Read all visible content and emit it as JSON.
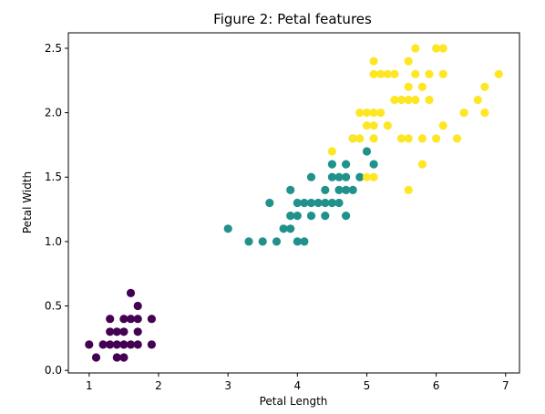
{
  "chart_data": {
    "type": "scatter",
    "title": "Figure 2: Petal features",
    "xlabel": "Petal Length",
    "ylabel": "Petal Width",
    "xlim": [
      0.7,
      7.2
    ],
    "ylim": [
      -0.02,
      2.62
    ],
    "xticks": [
      1,
      2,
      3,
      4,
      5,
      6,
      7
    ],
    "yticks": [
      0.0,
      0.5,
      1.0,
      1.5,
      2.0,
      2.5
    ],
    "xtick_labels": [
      "1",
      "2",
      "3",
      "4",
      "5",
      "6",
      "7"
    ],
    "ytick_labels": [
      "0.0",
      "0.5",
      "1.0",
      "1.5",
      "2.0",
      "2.5"
    ],
    "grid": false,
    "legend": "none",
    "series": [
      {
        "color": "#440154",
        "points": [
          [
            1.0,
            0.2
          ],
          [
            1.1,
            0.1
          ],
          [
            1.2,
            0.2
          ],
          [
            1.3,
            0.2
          ],
          [
            1.3,
            0.3
          ],
          [
            1.3,
            0.4
          ],
          [
            1.4,
            0.1
          ],
          [
            1.4,
            0.2
          ],
          [
            1.4,
            0.3
          ],
          [
            1.5,
            0.1
          ],
          [
            1.5,
            0.2
          ],
          [
            1.5,
            0.3
          ],
          [
            1.5,
            0.4
          ],
          [
            1.6,
            0.2
          ],
          [
            1.6,
            0.4
          ],
          [
            1.6,
            0.6
          ],
          [
            1.7,
            0.2
          ],
          [
            1.7,
            0.3
          ],
          [
            1.7,
            0.4
          ],
          [
            1.7,
            0.5
          ],
          [
            1.9,
            0.2
          ],
          [
            1.9,
            0.4
          ]
        ]
      },
      {
        "color": "#21918c",
        "points": [
          [
            3.0,
            1.1
          ],
          [
            3.3,
            1.0
          ],
          [
            3.5,
            1.0
          ],
          [
            3.6,
            1.3
          ],
          [
            3.7,
            1.0
          ],
          [
            3.8,
            1.1
          ],
          [
            3.9,
            1.1
          ],
          [
            3.9,
            1.2
          ],
          [
            3.9,
            1.4
          ],
          [
            4.0,
            1.0
          ],
          [
            4.0,
            1.2
          ],
          [
            4.0,
            1.3
          ],
          [
            4.1,
            1.0
          ],
          [
            4.1,
            1.3
          ],
          [
            4.2,
            1.2
          ],
          [
            4.2,
            1.3
          ],
          [
            4.2,
            1.5
          ],
          [
            4.3,
            1.3
          ],
          [
            4.4,
            1.2
          ],
          [
            4.4,
            1.3
          ],
          [
            4.4,
            1.4
          ],
          [
            4.5,
            1.3
          ],
          [
            4.5,
            1.5
          ],
          [
            4.5,
            1.6
          ],
          [
            4.6,
            1.3
          ],
          [
            4.6,
            1.4
          ],
          [
            4.6,
            1.5
          ],
          [
            4.7,
            1.2
          ],
          [
            4.7,
            1.4
          ],
          [
            4.7,
            1.5
          ],
          [
            4.7,
            1.6
          ],
          [
            4.8,
            1.4
          ],
          [
            4.8,
            1.8
          ],
          [
            4.9,
            1.5
          ],
          [
            5.0,
            1.7
          ],
          [
            5.1,
            1.6
          ]
        ]
      },
      {
        "color": "#fde725",
        "points": [
          [
            4.5,
            1.7
          ],
          [
            4.8,
            1.8
          ],
          [
            4.9,
            1.8
          ],
          [
            4.9,
            2.0
          ],
          [
            5.0,
            1.5
          ],
          [
            5.0,
            2.0
          ],
          [
            5.0,
            1.9
          ],
          [
            5.1,
            1.5
          ],
          [
            5.1,
            1.8
          ],
          [
            5.1,
            1.9
          ],
          [
            5.1,
            2.0
          ],
          [
            5.1,
            2.3
          ],
          [
            5.1,
            2.4
          ],
          [
            5.2,
            2.0
          ],
          [
            5.2,
            2.3
          ],
          [
            5.3,
            1.9
          ],
          [
            5.3,
            2.3
          ],
          [
            5.4,
            2.1
          ],
          [
            5.4,
            2.3
          ],
          [
            5.5,
            1.8
          ],
          [
            5.5,
            2.1
          ],
          [
            5.6,
            1.4
          ],
          [
            5.6,
            1.8
          ],
          [
            5.6,
            2.1
          ],
          [
            5.6,
            2.2
          ],
          [
            5.6,
            2.4
          ],
          [
            5.7,
            2.1
          ],
          [
            5.7,
            2.3
          ],
          [
            5.7,
            2.5
          ],
          [
            5.8,
            1.6
          ],
          [
            5.8,
            1.8
          ],
          [
            5.8,
            2.2
          ],
          [
            5.9,
            2.1
          ],
          [
            5.9,
            2.3
          ],
          [
            6.0,
            1.8
          ],
          [
            6.0,
            2.5
          ],
          [
            6.1,
            1.9
          ],
          [
            6.1,
            2.3
          ],
          [
            6.1,
            2.5
          ],
          [
            6.3,
            1.8
          ],
          [
            6.4,
            2.0
          ],
          [
            6.6,
            2.1
          ],
          [
            6.7,
            2.0
          ],
          [
            6.7,
            2.2
          ],
          [
            6.9,
            2.3
          ]
        ]
      }
    ]
  }
}
